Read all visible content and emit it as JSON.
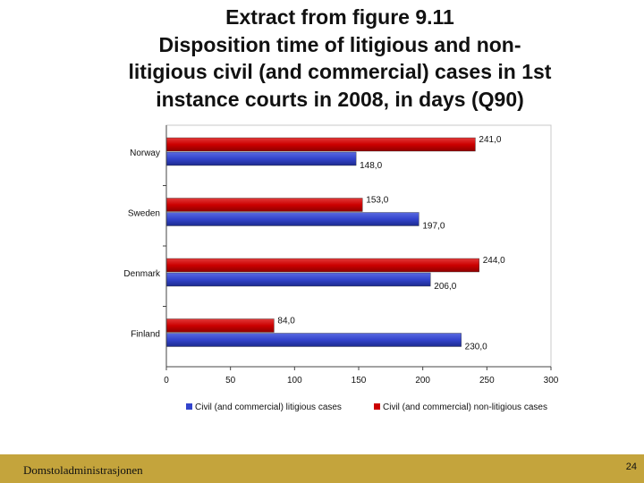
{
  "slide": {
    "title_lines": [
      "Extract from figure 9.11",
      "Disposition time of litigious and non-",
      "litigious civil (and commercial) cases in 1st",
      "instance courts in 2008, in days (Q90)"
    ]
  },
  "footer": {
    "organization": "Domstoladministrasjonen",
    "page_number": "24",
    "background_color": "#c4a43c"
  },
  "chart_data": {
    "type": "bar",
    "orientation": "horizontal",
    "categories": [
      "Norway",
      "Sweden",
      "Denmark",
      "Finland"
    ],
    "series": [
      {
        "name": "Civil (and commercial) non-litigious cases",
        "color": "#cc0000",
        "values": [
          241,
          153,
          244,
          84
        ],
        "labels": [
          "241,0",
          "153,0",
          "244,0",
          "84,0"
        ]
      },
      {
        "name": "Civil (and commercial) litigious cases",
        "color": "#3344cc",
        "values": [
          148,
          197,
          206,
          230
        ],
        "labels": [
          "148,0",
          "197,0",
          "206,0",
          "230,0"
        ]
      }
    ],
    "xlim": [
      0,
      300
    ],
    "x_ticks": [
      "0",
      "50",
      "100",
      "150",
      "200",
      "250",
      "300"
    ],
    "legend_order": [
      1,
      0
    ],
    "legend_position": "bottom",
    "grid": false
  }
}
